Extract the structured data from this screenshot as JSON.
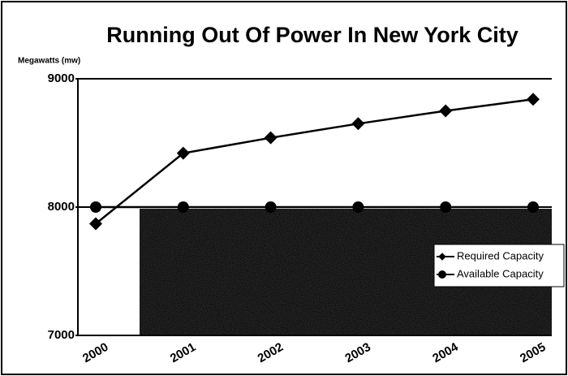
{
  "chart_data": {
    "type": "line",
    "title": "Running Out Of Power In New York City",
    "y_label": "Megawatts (mw)",
    "categories": [
      "2000",
      "2001",
      "2002",
      "2003",
      "2004",
      "2005"
    ],
    "series": [
      {
        "name": "Required Capacity",
        "color": "#000000",
        "marker": "diamond",
        "values": [
          7870,
          8420,
          8540,
          8650,
          8750,
          8840
        ]
      },
      {
        "name": "Available Capacity",
        "color": "#000000",
        "marker": "circle",
        "values": [
          8000,
          8000,
          8000,
          8000,
          8000,
          8000
        ]
      }
    ],
    "ylim": [
      7000,
      9000
    ],
    "yticks": [
      7000,
      8000,
      9000
    ],
    "grid": true,
    "legend": "right"
  }
}
